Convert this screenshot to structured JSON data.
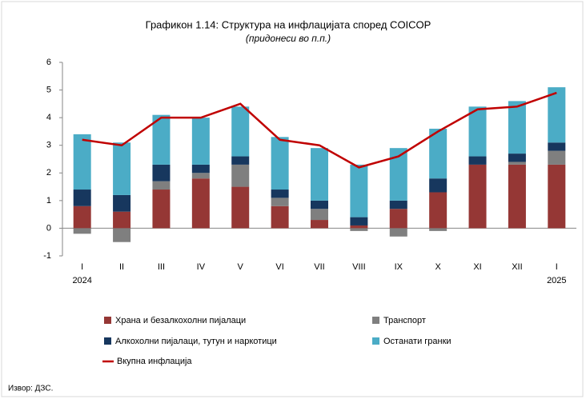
{
  "chart_data": {
    "type": "stacked_bar_line",
    "title": "Графикон 1.14: Структура на инфлацијата според COICOP",
    "subtitle": "(придонеси во п.п.)",
    "source": "Извор: ДЗС.",
    "categories": [
      "I",
      "II",
      "III",
      "IV",
      "V",
      "VI",
      "VII",
      "VIII",
      "IX",
      "X",
      "XI",
      "XII",
      "I"
    ],
    "category_years": [
      "2024",
      null,
      null,
      null,
      null,
      null,
      null,
      null,
      null,
      null,
      null,
      null,
      "2025"
    ],
    "series": [
      {
        "name": "Храна и безалкохолни пијалаци",
        "color": "#953735",
        "values": [
          0.8,
          0.6,
          1.4,
          1.8,
          1.5,
          0.8,
          0.3,
          0.1,
          0.7,
          1.3,
          2.3,
          2.3,
          2.3
        ]
      },
      {
        "name": "Транспорт",
        "color": "#7f7f7f",
        "values": [
          -0.2,
          -0.5,
          0.3,
          0.2,
          0.8,
          0.3,
          0.4,
          -0.1,
          -0.3,
          -0.1,
          0,
          0.1,
          0.5
        ]
      },
      {
        "name": "Алкохолни пијалаци, тутун и наркотици",
        "color": "#17375e",
        "values": [
          0.6,
          0.6,
          0.6,
          0.3,
          0.3,
          0.3,
          0.3,
          0.3,
          0.3,
          0.5,
          0.3,
          0.3,
          0.3
        ]
      },
      {
        "name": "Останати гранки",
        "color": "#4bacc6",
        "values": [
          2.0,
          1.9,
          1.8,
          1.7,
          1.8,
          1.9,
          1.9,
          1.9,
          1.9,
          1.8,
          1.8,
          1.9,
          2.0
        ]
      }
    ],
    "line": {
      "name": "Вкупна инфлација",
      "color": "#c00000",
      "values": [
        3.2,
        3.0,
        4.0,
        4.0,
        4.5,
        3.2,
        3.0,
        2.2,
        2.6,
        3.5,
        4.3,
        4.4,
        4.9
      ]
    },
    "ylim": [
      -1,
      6
    ],
    "yticks": [
      -1,
      0,
      1,
      2,
      3,
      4,
      5,
      6
    ]
  }
}
